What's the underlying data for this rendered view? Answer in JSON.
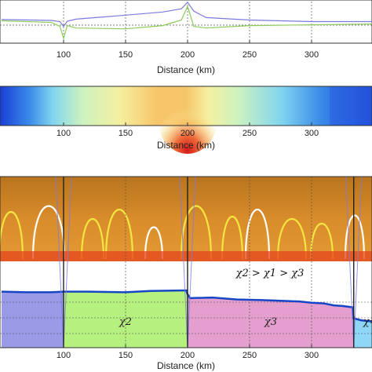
{
  "chart_data": [
    {
      "panel": "top-line",
      "type": "line",
      "xlabel": "Distance (km)",
      "xlim": [
        50,
        350
      ],
      "xticks": [
        100,
        150,
        200,
        250,
        300
      ],
      "grid": true,
      "series": [
        {
          "color": "#7a7ae0",
          "x": [
            50,
            90,
            97,
            100,
            103,
            110,
            150,
            180,
            195,
            200,
            205,
            215,
            250,
            300,
            350
          ],
          "y": [
            0.45,
            0.47,
            0.5,
            0.62,
            0.49,
            0.44,
            0.34,
            0.26,
            0.18,
            0.02,
            0.24,
            0.4,
            0.46,
            0.5,
            0.5
          ]
        },
        {
          "color": "#8ccc5a",
          "x": [
            50,
            90,
            97,
            100,
            103,
            110,
            150,
            180,
            195,
            200,
            205,
            215,
            250,
            300,
            350
          ],
          "y": [
            0.48,
            0.52,
            0.62,
            0.92,
            0.6,
            0.66,
            0.68,
            0.6,
            0.46,
            0.12,
            0.62,
            0.66,
            0.6,
            0.58,
            0.56
          ]
        }
      ]
    },
    {
      "panel": "heatmap",
      "type": "heatmap",
      "xlabel": "Distance (km)",
      "xlim": [
        50,
        350
      ],
      "xticks": [
        100,
        150,
        200,
        250,
        300
      ],
      "colormap": [
        "#1a3fd6",
        "#3a8ce8",
        "#7fd4f0",
        "#ccf2c0",
        "#f5f0a0",
        "#f7c66a",
        "#ee6a3a",
        "#d41a1a"
      ],
      "peak_x": 200,
      "grid": true
    },
    {
      "panel": "lower",
      "type": "area",
      "xlabel": "Distance (km)",
      "xlim": [
        50,
        350
      ],
      "xticks": [
        100,
        150,
        200,
        250,
        300
      ],
      "grid": true,
      "profile": {
        "color": "#1646c6",
        "x": [
          50,
          70,
          90,
          100,
          120,
          150,
          170,
          199,
          200,
          202,
          220,
          240,
          260,
          290,
          300,
          310,
          318,
          325,
          333,
          334,
          340,
          350
        ],
        "y": [
          0.14,
          0.15,
          0.15,
          0.14,
          0.14,
          0.15,
          0.13,
          0.12,
          0.18,
          0.24,
          0.23,
          0.26,
          0.27,
          0.29,
          0.31,
          0.32,
          0.35,
          0.36,
          0.38,
          0.55,
          0.58,
          0.6
        ]
      },
      "regions": [
        {
          "label": "",
          "from": 50,
          "to": 100,
          "color": "#9a9ae6"
        },
        {
          "label": "χ2",
          "from": 100,
          "to": 200,
          "color": "#b6f07e"
        },
        {
          "label": "χ3",
          "from": 200,
          "to": 334,
          "color": "#e59fcf"
        },
        {
          "label": "χ=",
          "from": 334,
          "to": 350,
          "color": "#8fd7f7"
        }
      ],
      "annotation": "χ2 > χ1 > χ3",
      "boundaries": [
        100,
        200,
        334
      ]
    }
  ]
}
